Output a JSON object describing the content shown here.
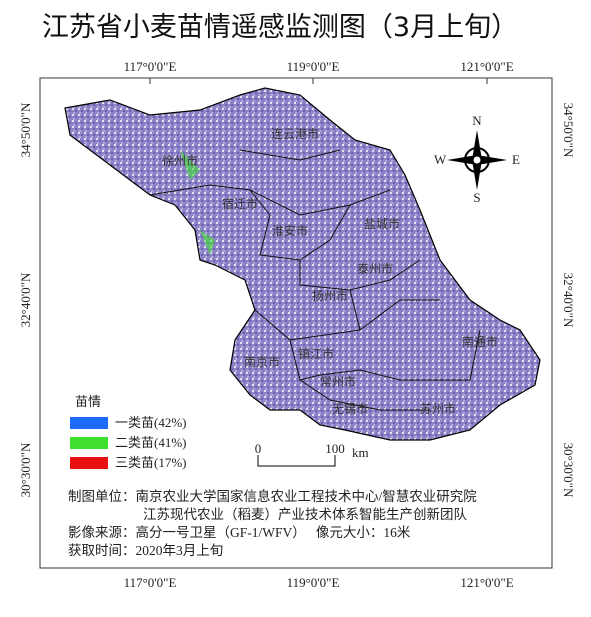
{
  "header": {
    "title": "江苏省小麦苗情遥感监测图（3月上旬）"
  },
  "coordinates": {
    "top": [
      "117°0'0\"E",
      "119°0'0\"E",
      "121°0'0\"E"
    ],
    "bottom": [
      "117°0'0\"E",
      "119°0'0\"E",
      "121°0'0\"E"
    ],
    "left": [
      "34°50'0\"N",
      "32°40'0\"N",
      "30°30'0\"N"
    ],
    "right": [
      "34°50'0\"N",
      "32°40'0\"N",
      "30°30'0\"N"
    ]
  },
  "cities": [
    "连云港市",
    "徐州市",
    "宿迁市",
    "淮安市",
    "盐城市",
    "泰州市",
    "扬州市",
    "南通市",
    "南京市",
    "镇江市",
    "常州市",
    "无锡市",
    "苏州市"
  ],
  "compass": {
    "n": "N",
    "s": "S",
    "e": "E",
    "w": "W"
  },
  "legend": {
    "title": "苗情",
    "items": [
      {
        "label": "一类苗(42%)",
        "color": "#1e6bff"
      },
      {
        "label": "二类苗(41%)",
        "color": "#3fe030"
      },
      {
        "label": "三类苗(17%)",
        "color": "#e81010"
      }
    ]
  },
  "scale_bar": {
    "start": "0",
    "end": "100",
    "unit": "km"
  },
  "credits": [
    "制图单位：南京农业大学国家信息农业工程技术中心/智慧农业研究院",
    "江苏现代农业（稻麦）产业技术体系智能生产创新团队",
    "影像来源：高分一号卫星（GF-1/WFV）   像元大小：16米",
    "获取时间：2020年3月上旬"
  ]
}
